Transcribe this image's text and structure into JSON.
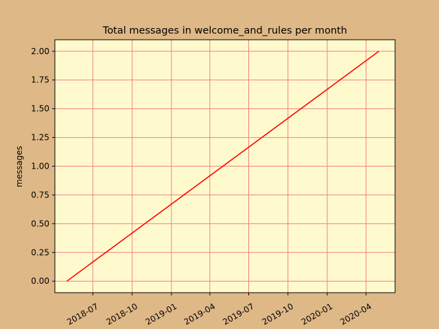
{
  "colors": {
    "figure_background": "#deb887",
    "plot_background": "#fffacd",
    "grid": "#f08080",
    "line": "#ff0000",
    "axis": "#000000"
  },
  "chart_data": {
    "type": "line",
    "title": "Total messages in welcome_and_rules per month",
    "xlabel": "",
    "ylabel": "messages",
    "grid": true,
    "x_type": "date",
    "xlim": [
      "2018-04-03",
      "2020-06-08"
    ],
    "ylim": [
      -0.1,
      2.1
    ],
    "x_ticks": [
      {
        "date": "2018-07-01",
        "label": "2018-07"
      },
      {
        "date": "2018-10-01",
        "label": "2018-10"
      },
      {
        "date": "2019-01-01",
        "label": "2019-01"
      },
      {
        "date": "2019-04-01",
        "label": "2019-04"
      },
      {
        "date": "2019-07-01",
        "label": "2019-07"
      },
      {
        "date": "2019-10-01",
        "label": "2019-10"
      },
      {
        "date": "2020-01-01",
        "label": "2020-01"
      },
      {
        "date": "2020-04-01",
        "label": "2020-04"
      }
    ],
    "y_ticks": [
      {
        "value": 0.0,
        "label": "0.00"
      },
      {
        "value": 0.25,
        "label": "0.25"
      },
      {
        "value": 0.5,
        "label": "0.50"
      },
      {
        "value": 0.75,
        "label": "0.75"
      },
      {
        "value": 1.0,
        "label": "1.00"
      },
      {
        "value": 1.25,
        "label": "1.25"
      },
      {
        "value": 1.5,
        "label": "1.50"
      },
      {
        "value": 1.75,
        "label": "1.75"
      },
      {
        "value": 2.0,
        "label": "2.00"
      }
    ],
    "series": [
      {
        "name": "messages",
        "x": [
          "2018-05-01",
          "2020-05-01"
        ],
        "values": [
          0,
          2
        ]
      }
    ]
  }
}
